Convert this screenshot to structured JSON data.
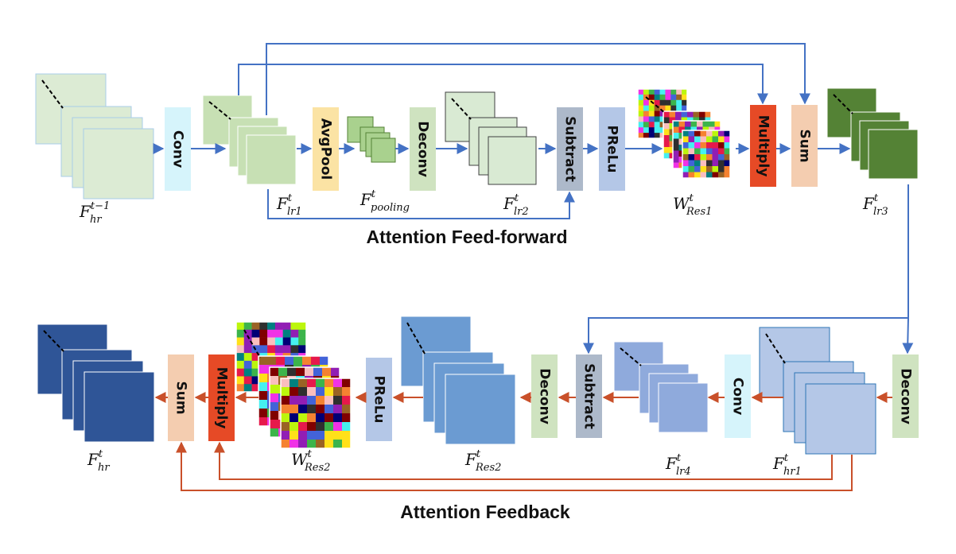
{
  "colors": {
    "blue_arrow": "#4472C4",
    "red_arrow": "#C9502A",
    "light_green": "#DCEBD4",
    "mid_green": "#C7E0B4",
    "dark_green": "#548235",
    "light_blue": "#B4C7E7",
    "mid_blue": "#6B9BD2",
    "periwinkle": "#8FAADC",
    "dark_navy": "#2F5597"
  },
  "sections": {
    "feedforward_title": "Attention Feed-forward",
    "feedback_title": "Attention Feedback"
  },
  "ops": {
    "conv1": "Conv",
    "avgpool": "AvgPool",
    "deconv1": "Deconv",
    "subtract1": "Subtract",
    "prelu1": "PReLu",
    "multiply1": "Multiply",
    "sum1": "Sum",
    "deconv2": "Deconv",
    "conv2": "Conv",
    "subtract2": "Subtract",
    "deconv3": "Deconv",
    "prelu2": "PReLu",
    "multiply2": "Multiply",
    "sum2": "Sum"
  },
  "labels": {
    "f_hr_prev": {
      "base": "F",
      "sup": "t−1",
      "sub": "hr"
    },
    "f_lr1": {
      "base": "F",
      "sup": "t",
      "sub": "lr1"
    },
    "f_pooling": {
      "base": "F",
      "sup": "t",
      "sub": "pooling"
    },
    "f_lr2": {
      "base": "F",
      "sup": "t",
      "sub": "lr2"
    },
    "w_res1": {
      "base": "W",
      "sup": "t",
      "sub": "Res1"
    },
    "f_lr3": {
      "base": "F",
      "sup": "t",
      "sub": "lr3"
    },
    "f_hr1": {
      "base": "F",
      "sup": "t",
      "sub": "hr1"
    },
    "f_lr4": {
      "base": "F",
      "sup": "t",
      "sub": "lr4"
    },
    "f_res2": {
      "base": "F",
      "sup": "t",
      "sub": "Res2"
    },
    "w_res2": {
      "base": "W",
      "sup": "t",
      "sub": "Res2"
    },
    "f_hr": {
      "base": "F",
      "sup": "t",
      "sub": "hr"
    }
  }
}
